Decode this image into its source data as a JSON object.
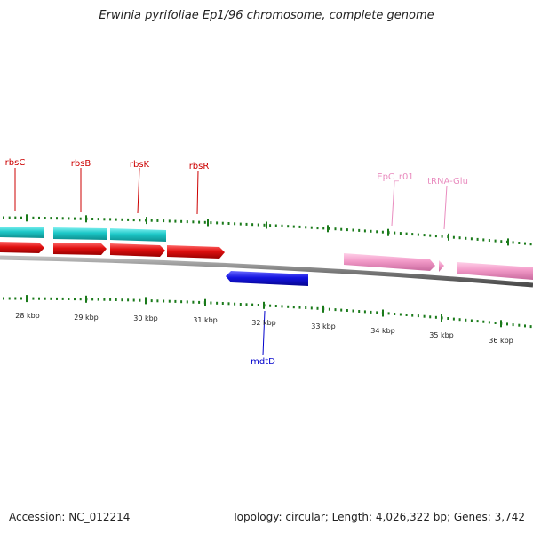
{
  "title": "Erwinia pyrifoliae Ep1/96 chromosome, complete genome",
  "footer": {
    "accession": "Accession: NC_012214",
    "summary": "Topology: circular; Length: 4,026,322 bp; Genes: 3,742"
  },
  "colors": {
    "backbone": "#808080",
    "tick": "#1a7a1a",
    "teal": "#1cc7c7",
    "red": "#e01010",
    "blue": "#1414e0",
    "pink": "#f29ac8",
    "label_red": "#cc0000",
    "label_blue": "#0000cc",
    "label_pink": "#e98cbf"
  },
  "scale_labels": [
    "28 kbp",
    "29 kbp",
    "30 kbp",
    "31 kbp",
    "32 kbp",
    "33 kbp",
    "34 kbp",
    "35 kbp",
    "36 kbp"
  ],
  "gene_labels": [
    {
      "text": "rbsC",
      "color": "label_red"
    },
    {
      "text": "rbsB",
      "color": "label_red"
    },
    {
      "text": "rbsK",
      "color": "label_red"
    },
    {
      "text": "rbsR",
      "color": "label_red"
    },
    {
      "text": "EpC_r01",
      "color": "label_pink"
    },
    {
      "text": "tRNA-Glu",
      "color": "label_pink"
    },
    {
      "text": "mdtD",
      "color": "label_blue"
    }
  ]
}
